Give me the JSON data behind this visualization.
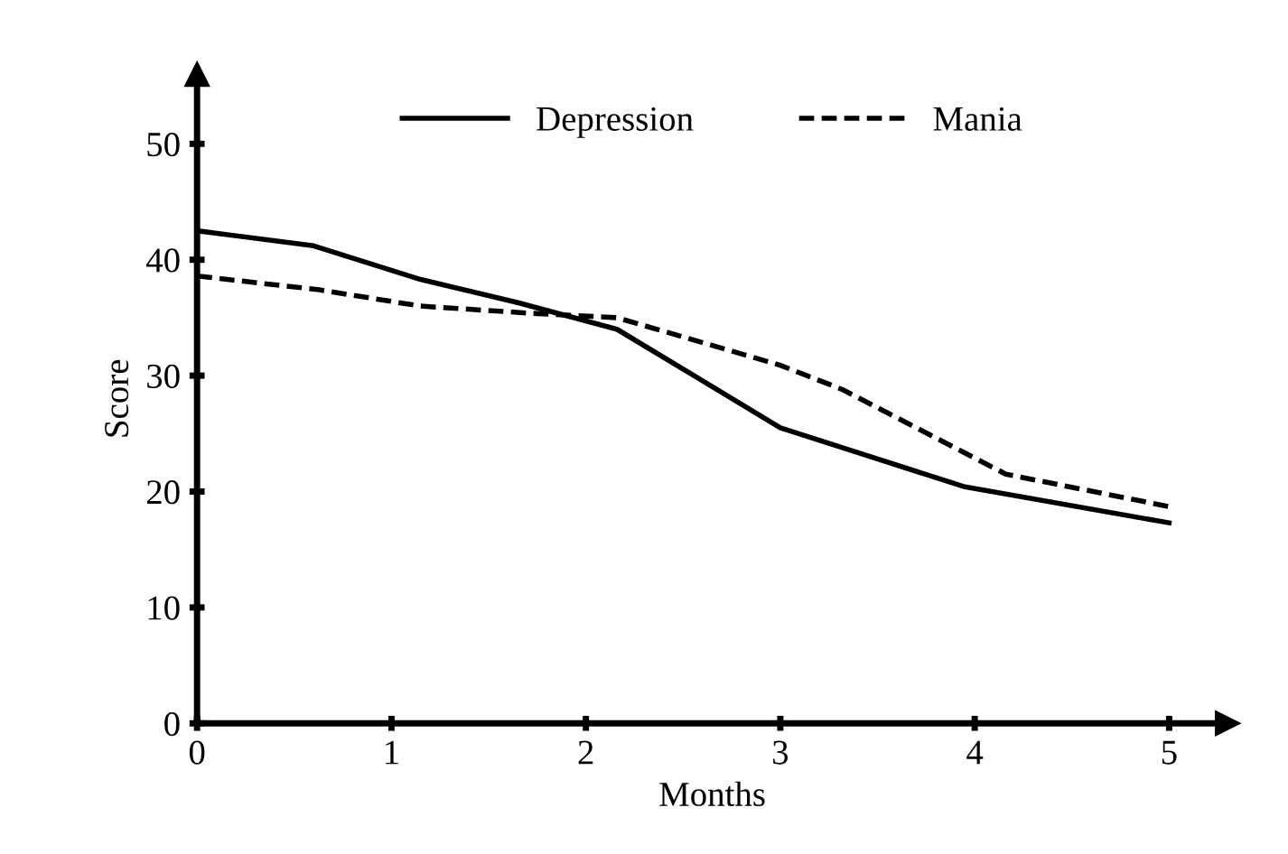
{
  "chart_data": {
    "type": "line",
    "xlabel": "Months",
    "ylabel": "Score",
    "series": [
      {
        "name": "Depression",
        "color": "#000000",
        "line_style": "solid",
        "x": [
          0,
          0.6,
          1.15,
          1.65,
          2.16,
          3,
          3.95,
          5
        ],
        "values": [
          42.5,
          41.2,
          38.3,
          36.3,
          34,
          25.5,
          20.4,
          17.3
        ]
      },
      {
        "name": "Mania",
        "color": "#000000",
        "line_style": "dashed",
        "x": [
          0,
          0.63,
          1.15,
          1.7,
          2.16,
          3,
          3.32,
          4.16,
          5
        ],
        "values": [
          38.6,
          37.4,
          36,
          35.4,
          35,
          30.9,
          28.8,
          21.5,
          18.7
        ]
      }
    ],
    "xlim": [
      0,
      5.3
    ],
    "xticks": [
      0,
      1,
      2,
      3,
      4,
      5
    ],
    "ylim": [
      0,
      56
    ],
    "yticks": [
      0,
      10,
      20,
      30,
      40,
      50
    ],
    "grid": false,
    "legend": "top",
    "marker": "none"
  }
}
